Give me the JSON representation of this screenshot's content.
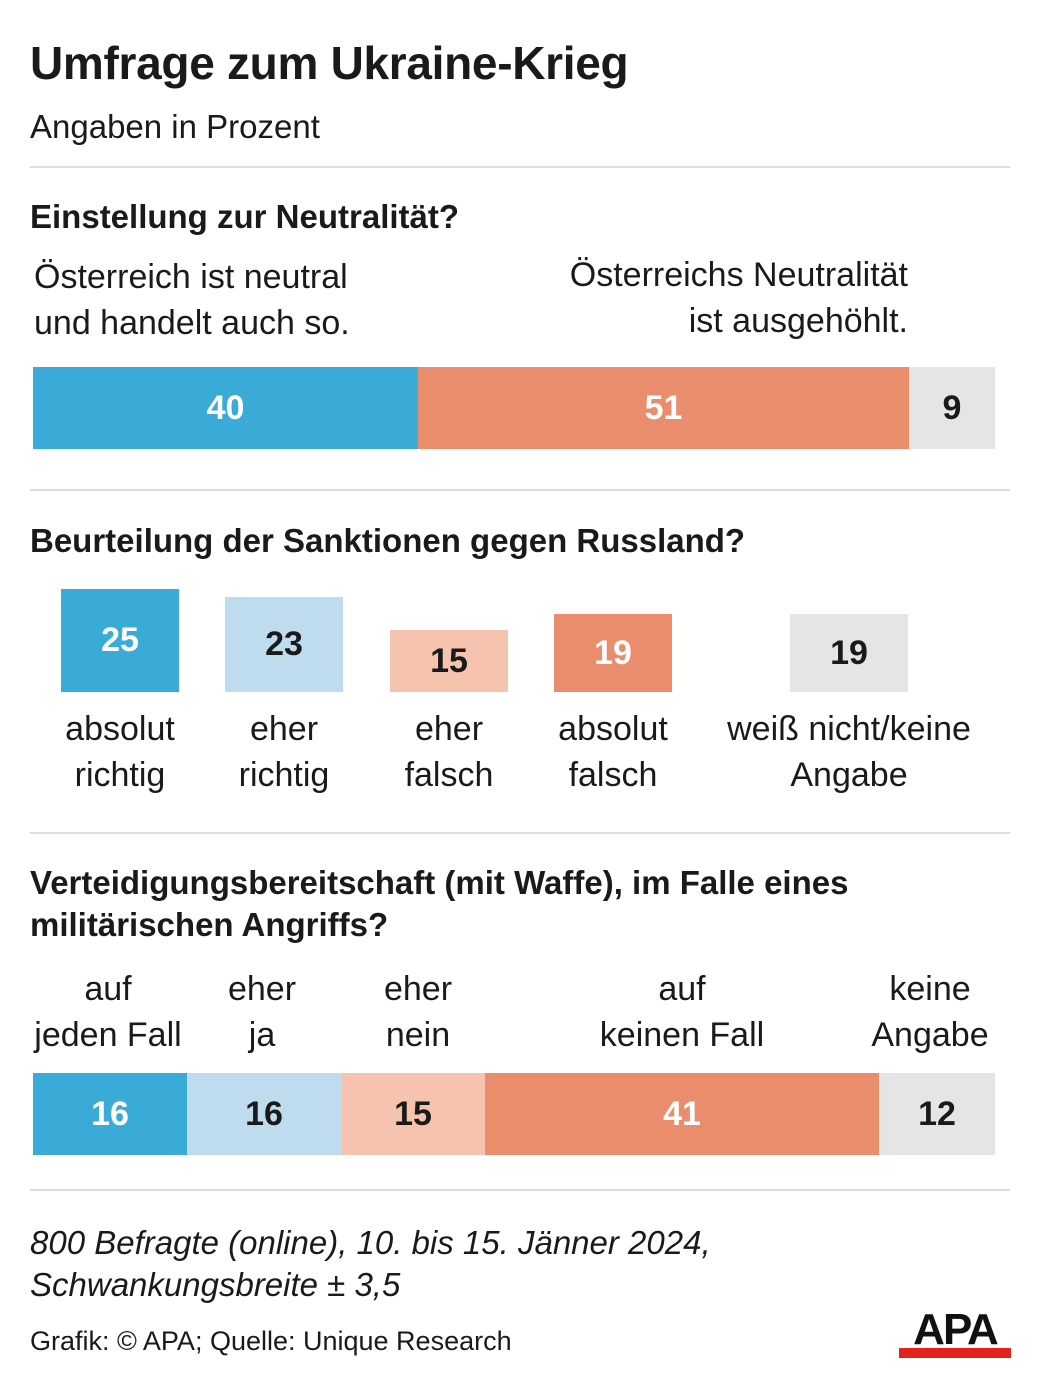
{
  "header": {
    "title": "Umfrage zum Ukraine-Krieg",
    "subtitle": "Angaben in Prozent"
  },
  "chart_data": [
    {
      "type": "bar",
      "orientation": "horizontal-stacked",
      "title": "Einstellung zur Neutralität?",
      "categories": [
        "Österreich ist neutral und handelt auch so.",
        "Österreichs Neutralität ist ausgehöhlt.",
        ""
      ],
      "label_lines": [
        [
          "Österreich ist neutral",
          "und handelt auch so."
        ],
        [
          "Österreichs Neutralität",
          "ist ausgehöhlt."
        ]
      ],
      "values": [
        40,
        51,
        9
      ],
      "colors": [
        "#3aabd7",
        "#ea8d6d",
        "#e5e5e6"
      ],
      "text_colors": [
        "#ffffff",
        "#ffffff",
        "#1a1a1a"
      ]
    },
    {
      "type": "bar",
      "orientation": "vertical",
      "title": "Beurteilung der Sanktionen gegen Russland?",
      "categories": [
        "absolut richtig",
        "eher richtig",
        "eher falsch",
        "absolut falsch",
        "weiß nicht/keine Angabe"
      ],
      "label_lines": [
        [
          "absolut",
          "richtig"
        ],
        [
          "eher",
          "richtig"
        ],
        [
          "eher",
          "falsch"
        ],
        [
          "absolut",
          "falsch"
        ],
        [
          "weiß nicht/keine",
          "Angabe"
        ]
      ],
      "values": [
        25,
        23,
        15,
        19,
        19
      ],
      "colors": [
        "#3aabd7",
        "#bfdcef",
        "#f5c3ae",
        "#ea8d6d",
        "#e5e5e6"
      ],
      "text_colors": [
        "#ffffff",
        "#1a1a1a",
        "#1a1a1a",
        "#ffffff",
        "#1a1a1a"
      ]
    },
    {
      "type": "bar",
      "orientation": "horizontal-stacked",
      "title": "Verteidigungsbereitschaft (mit Waffe), im Falle eines militärischen Angriffs?",
      "categories": [
        "auf jeden Fall",
        "eher ja",
        "eher nein",
        "auf keinen Fall",
        "keine Angabe"
      ],
      "label_lines": [
        [
          "auf",
          "jeden Fall"
        ],
        [
          "eher",
          "ja"
        ],
        [
          "eher",
          "nein"
        ],
        [
          "auf",
          "keinen Fall"
        ],
        [
          "keine",
          "Angabe"
        ]
      ],
      "values": [
        16,
        16,
        15,
        41,
        12
      ],
      "colors": [
        "#3aabd7",
        "#bfdcef",
        "#f5c3ae",
        "#ea8d6d",
        "#e5e5e6"
      ],
      "text_colors": [
        "#ffffff",
        "#1a1a1a",
        "#1a1a1a",
        "#ffffff",
        "#1a1a1a"
      ]
    }
  ],
  "footer": {
    "note_line1": "800 Befragte (online), 10. bis 15. Jänner 2024,",
    "note_line2": "Schwankungsbreite ± 3,5",
    "credit": "Grafik: © APA; Quelle: Unique Research",
    "logo_text": "APA",
    "logo_color": "#e2231a"
  }
}
